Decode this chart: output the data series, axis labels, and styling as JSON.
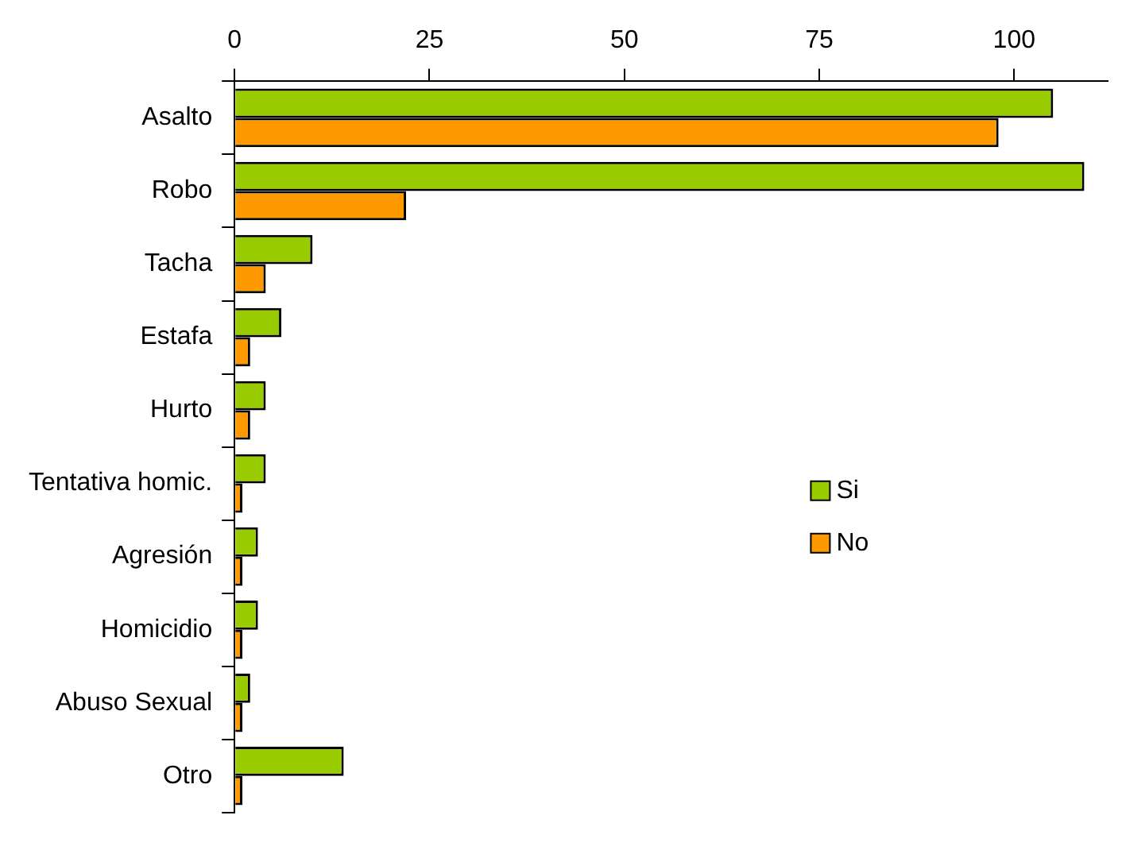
{
  "chart_data": {
    "type": "bar",
    "orientation": "horizontal",
    "categories": [
      "Asalto",
      "Robo",
      "Tacha",
      "Estafa",
      "Hurto",
      "Tentativa homic.",
      "Agresión",
      "Homicidio",
      "Abuso Sexual",
      "Otro"
    ],
    "series": [
      {
        "name": "Si",
        "color": "#99cc00",
        "values": [
          105,
          109,
          10,
          6,
          4,
          4,
          3,
          3,
          2,
          14
        ]
      },
      {
        "name": "No",
        "color": "#ff9900",
        "values": [
          98,
          22,
          4,
          2,
          2,
          1,
          1,
          1,
          1,
          1
        ]
      }
    ],
    "xlim": [
      0,
      112
    ],
    "xticks": [
      0,
      25,
      50,
      75,
      100
    ],
    "grid": false,
    "legend": "right"
  }
}
